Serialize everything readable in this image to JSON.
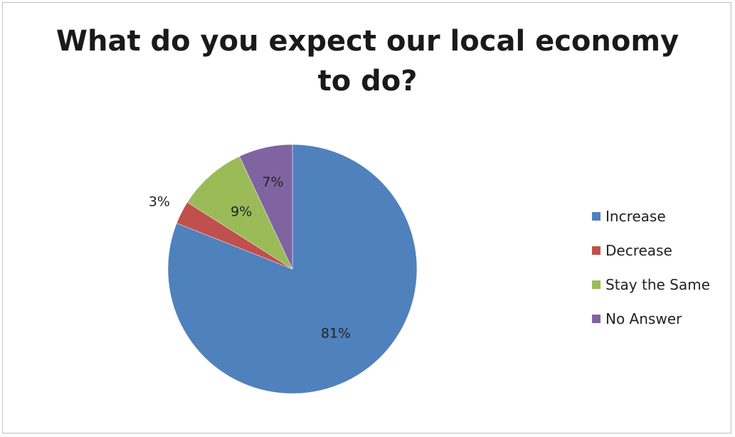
{
  "chart_data": {
    "type": "pie",
    "title_lines": [
      "What do you expect our local economy",
      "to do?"
    ],
    "categories": [
      "Increase",
      "Decrease",
      "Stay the Same",
      "No Answer"
    ],
    "values": [
      81,
      3,
      9,
      7
    ],
    "labels": [
      "81%",
      "3%",
      "9%",
      "7%"
    ],
    "colors": [
      "#4F81BD",
      "#C0504D",
      "#9BBB59",
      "#8064A2"
    ],
    "legend_position": "right",
    "start_angle_deg": 0,
    "direction": "clockwise"
  }
}
